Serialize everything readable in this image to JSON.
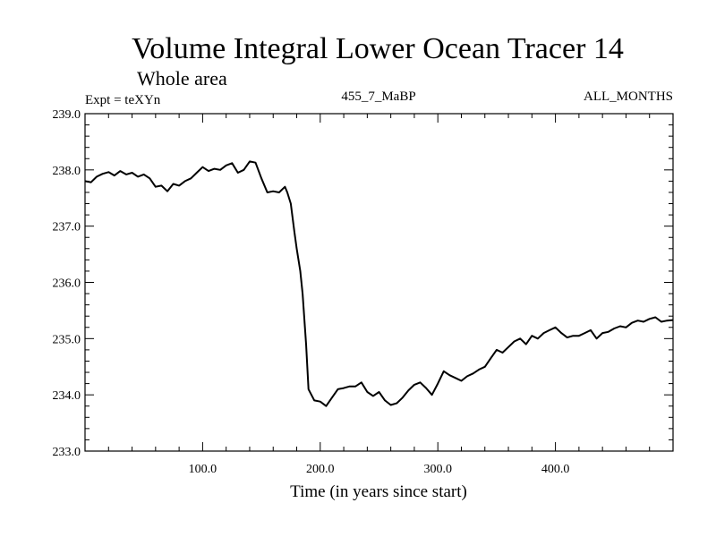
{
  "chart_data": {
    "type": "line",
    "title": "Volume Integral Lower Ocean Tracer 14",
    "subtitle": "Whole area",
    "expt_label": "Expt = teXYn",
    "center_label": "455_7_MaBP",
    "right_label": "ALL_MONTHS",
    "xlabel": "Time (in years since start)",
    "ylabel": "",
    "xlim": [
      0,
      500
    ],
    "ylim": [
      233.0,
      239.0
    ],
    "x_ticks": [
      100,
      200,
      300,
      400
    ],
    "x_tick_labels": [
      "100.0",
      "200.0",
      "300.0",
      "400.0"
    ],
    "y_ticks": [
      233,
      234,
      235,
      236,
      237,
      238,
      239
    ],
    "y_tick_labels": [
      "233.0",
      "234.0",
      "235.0",
      "236.0",
      "237.0",
      "238.0",
      "239.0"
    ],
    "series": [
      {
        "name": "Lower Ocean Tracer 14",
        "x": [
          0,
          5,
          10,
          15,
          20,
          25,
          30,
          35,
          40,
          45,
          50,
          55,
          60,
          65,
          70,
          75,
          80,
          85,
          90,
          95,
          100,
          105,
          110,
          115,
          120,
          125,
          130,
          135,
          140,
          145,
          150,
          155,
          160,
          165,
          170,
          172,
          175,
          178,
          180,
          183,
          185,
          188,
          190,
          195,
          200,
          205,
          210,
          215,
          220,
          225,
          230,
          235,
          240,
          245,
          250,
          255,
          260,
          265,
          270,
          275,
          280,
          285,
          290,
          295,
          300,
          305,
          310,
          315,
          320,
          325,
          330,
          335,
          340,
          345,
          350,
          355,
          360,
          365,
          370,
          375,
          380,
          385,
          390,
          395,
          400,
          405,
          410,
          415,
          420,
          425,
          430,
          435,
          440,
          445,
          450,
          455,
          460,
          465,
          470,
          475,
          480,
          485,
          490,
          495,
          500
        ],
        "values": [
          237.8,
          237.78,
          237.88,
          237.93,
          237.96,
          237.9,
          237.98,
          237.92,
          237.95,
          237.88,
          237.92,
          237.85,
          237.7,
          237.72,
          237.62,
          237.75,
          237.72,
          237.8,
          237.85,
          237.95,
          238.05,
          237.98,
          238.02,
          238.0,
          238.08,
          238.12,
          237.95,
          238.0,
          238.15,
          238.13,
          237.85,
          237.6,
          237.62,
          237.6,
          237.7,
          237.6,
          237.4,
          236.9,
          236.6,
          236.2,
          235.8,
          234.9,
          234.1,
          233.9,
          233.88,
          233.8,
          233.95,
          234.1,
          234.12,
          234.15,
          234.15,
          234.22,
          234.05,
          233.98,
          234.05,
          233.9,
          233.82,
          233.85,
          233.95,
          234.08,
          234.18,
          234.22,
          234.12,
          234.0,
          234.2,
          234.42,
          234.35,
          234.3,
          234.25,
          234.33,
          234.38,
          234.45,
          234.5,
          234.65,
          234.8,
          234.75,
          234.85,
          234.95,
          235.0,
          234.9,
          235.05,
          235.0,
          235.1,
          235.15,
          235.2,
          235.1,
          235.02,
          235.05,
          235.05,
          235.1,
          235.15,
          235.0,
          235.1,
          235.12,
          235.18,
          235.22,
          235.2,
          235.28,
          235.32,
          235.3,
          235.35,
          235.38,
          235.3,
          235.32,
          235.33
        ]
      }
    ]
  }
}
